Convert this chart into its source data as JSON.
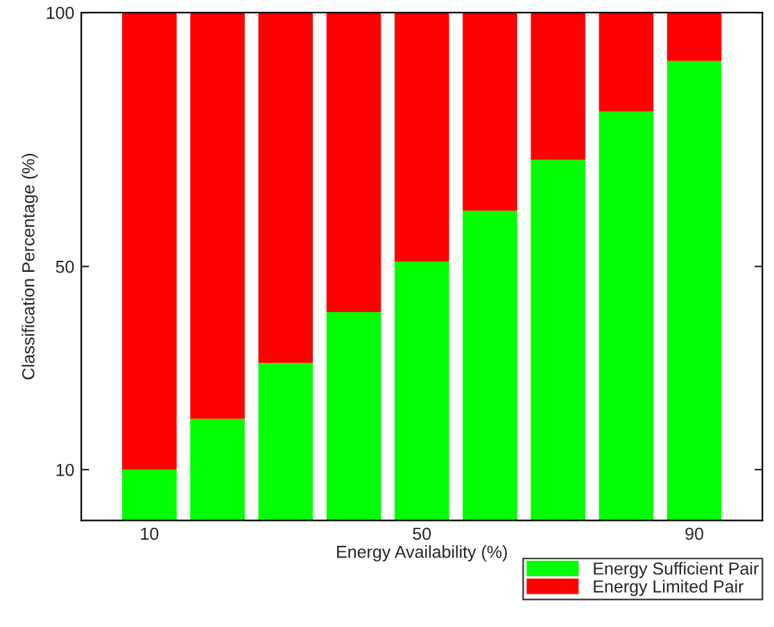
{
  "chart_data": {
    "type": "bar",
    "stacked": true,
    "xlabel": "Energy Availability (%)",
    "ylabel": "Classification Percentage (%)",
    "x": [
      10,
      20,
      30,
      40,
      50,
      60,
      70,
      80,
      90
    ],
    "series": [
      {
        "name": "Energy Sufficient Pair",
        "color": "#00ff00",
        "values": [
          10,
          20,
          31,
          41,
          51,
          61,
          71,
          80.5,
          90.5
        ]
      },
      {
        "name": "Energy Limited Pair",
        "color": "#ff0000",
        "values": [
          90,
          80,
          69,
          59,
          49,
          39,
          29,
          19.5,
          9.5
        ]
      }
    ],
    "xlim": [
      0,
      100
    ],
    "xticks": [
      10,
      50,
      90
    ],
    "ylim": [
      0,
      100
    ],
    "yticks": [
      10,
      50,
      100
    ],
    "grid": false,
    "legend": "bottom right"
  }
}
